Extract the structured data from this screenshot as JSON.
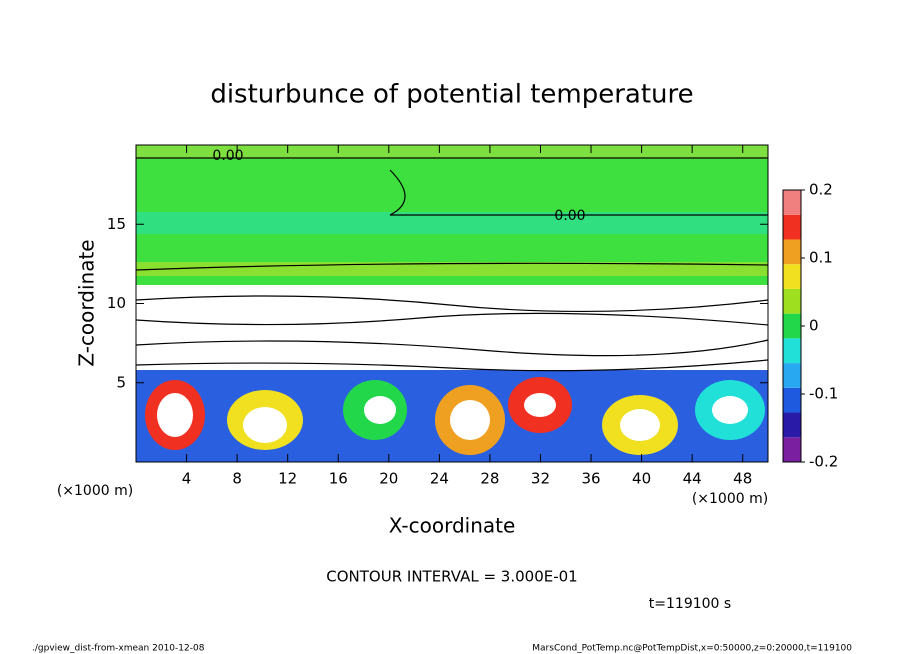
{
  "chart_data": {
    "type": "contour",
    "title": "disturbunce of potential temperature",
    "x_label": "X-coordinate",
    "y_label": "Z-coordinate",
    "x_unit": "(×1000 m)",
    "y_unit": "(×1000 m)",
    "xlim": [
      0,
      50
    ],
    "xticks": [
      4,
      8,
      12,
      16,
      20,
      24,
      28,
      32,
      36,
      40,
      44,
      48
    ],
    "ylim": [
      0,
      20
    ],
    "yticks": [
      5,
      10,
      15
    ],
    "colorbar": {
      "lim": [
        -0.2,
        0.2
      ],
      "ticks": [
        0.2,
        0.1,
        0,
        -0.1,
        -0.2
      ],
      "colors": [
        "#7a1fa0",
        "#2a1aa8",
        "#1e5ae0",
        "#28a8f0",
        "#20e0d8",
        "#22d84a",
        "#9ee020",
        "#f0e020",
        "#f0a020",
        "#f03020",
        "#f08080"
      ]
    },
    "contour_label": "0.00",
    "annotation": "CONTOUR INTERVAL = 3.000E-01",
    "time_label": "t=119100 s",
    "footer_left": "./gpview_dist-from-xmean  2010-12-08",
    "footer_right": "MarsCond_PotTemp.nc@PotTempDist,x=0:50000,z=0:20000,t=119100"
  }
}
